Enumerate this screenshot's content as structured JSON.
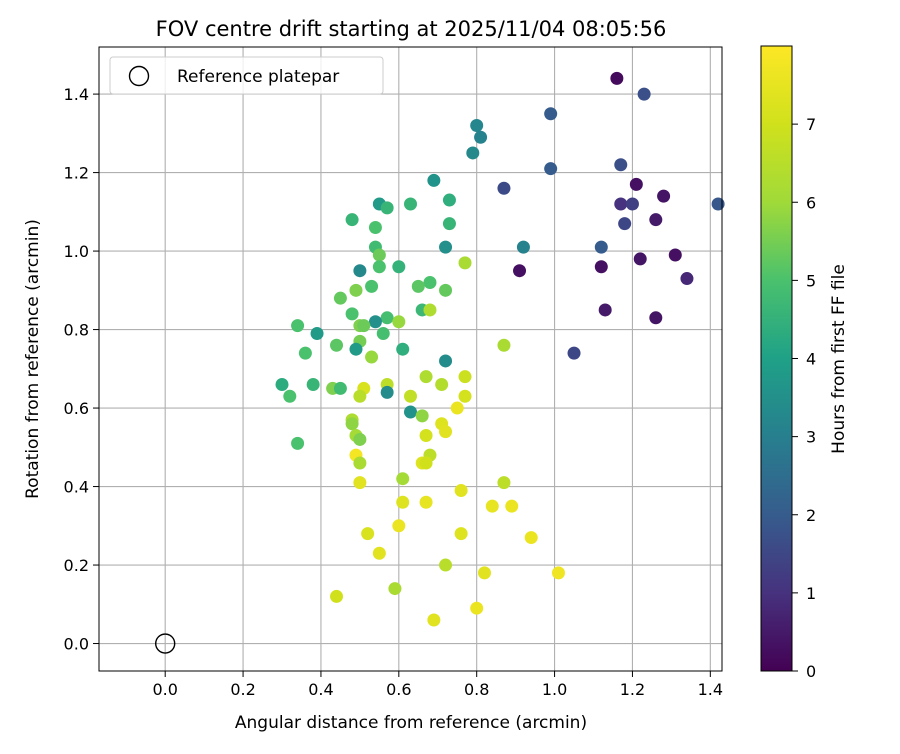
{
  "chart_data": {
    "type": "scatter",
    "title": "FOV centre drift starting at 2025/11/04 08:05:56",
    "xlabel": "Angular distance from reference (arcmin)",
    "ylabel": "Rotation from reference (arcmin)",
    "xlim": [
      -0.17,
      1.43
    ],
    "ylim": [
      -0.07,
      1.52
    ],
    "xticks": [
      0.0,
      0.2,
      0.4,
      0.6,
      0.8,
      1.0,
      1.2,
      1.4
    ],
    "xtick_labels": [
      "0.0",
      "0.2",
      "0.4",
      "0.6",
      "0.8",
      "1.0",
      "1.2",
      "1.4"
    ],
    "yticks": [
      0.0,
      0.2,
      0.4,
      0.6,
      0.8,
      1.0,
      1.2,
      1.4
    ],
    "ytick_labels": [
      "0.0",
      "0.2",
      "0.4",
      "0.6",
      "0.8",
      "1.0",
      "1.2",
      "1.4"
    ],
    "grid": true,
    "colormap": "viridis",
    "colorbar": {
      "label": "Hours from first FF file",
      "range": [
        0,
        8
      ],
      "ticks": [
        0,
        1,
        2,
        3,
        4,
        5,
        6,
        7
      ],
      "tick_labels": [
        "0",
        "1",
        "2",
        "3",
        "4",
        "5",
        "6",
        "7"
      ]
    },
    "legend": {
      "position": "top-left",
      "entries": [
        {
          "label": "Reference platepar",
          "marker": "open-circle"
        }
      ]
    },
    "reference_point": {
      "x": 0.0,
      "y": 0.0
    },
    "points": [
      {
        "x": 1.16,
        "y": 1.44,
        "c": 0.2
      },
      {
        "x": 1.23,
        "y": 1.4,
        "c": 1.7
      },
      {
        "x": 0.99,
        "y": 1.35,
        "c": 2.0
      },
      {
        "x": 0.99,
        "y": 1.21,
        "c": 2.0
      },
      {
        "x": 1.17,
        "y": 1.22,
        "c": 1.7
      },
      {
        "x": 1.21,
        "y": 1.17,
        "c": 0.3
      },
      {
        "x": 1.28,
        "y": 1.14,
        "c": 0.4
      },
      {
        "x": 1.17,
        "y": 1.12,
        "c": 1.0
      },
      {
        "x": 1.2,
        "y": 1.12,
        "c": 1.3
      },
      {
        "x": 1.42,
        "y": 1.12,
        "c": 1.9
      },
      {
        "x": 1.18,
        "y": 1.07,
        "c": 1.5
      },
      {
        "x": 1.26,
        "y": 1.08,
        "c": 0.5
      },
      {
        "x": 1.12,
        "y": 1.01,
        "c": 2.0
      },
      {
        "x": 1.31,
        "y": 0.99,
        "c": 0.3
      },
      {
        "x": 1.22,
        "y": 0.98,
        "c": 0.4
      },
      {
        "x": 1.12,
        "y": 0.96,
        "c": 0.3
      },
      {
        "x": 1.34,
        "y": 0.93,
        "c": 0.8
      },
      {
        "x": 1.13,
        "y": 0.85,
        "c": 0.5
      },
      {
        "x": 1.26,
        "y": 0.83,
        "c": 0.4
      },
      {
        "x": 1.05,
        "y": 0.74,
        "c": 1.5
      },
      {
        "x": 0.91,
        "y": 0.95,
        "c": 0.3
      },
      {
        "x": 0.87,
        "y": 1.16,
        "c": 1.6
      },
      {
        "x": 0.8,
        "y": 1.32,
        "c": 3.2
      },
      {
        "x": 0.81,
        "y": 1.29,
        "c": 3.1
      },
      {
        "x": 0.79,
        "y": 1.25,
        "c": 3.3
      },
      {
        "x": 0.92,
        "y": 1.01,
        "c": 3.1
      },
      {
        "x": 0.69,
        "y": 1.18,
        "c": 3.6
      },
      {
        "x": 0.73,
        "y": 1.13,
        "c": 4.4
      },
      {
        "x": 0.73,
        "y": 1.07,
        "c": 4.6
      },
      {
        "x": 0.72,
        "y": 1.01,
        "c": 3.5
      },
      {
        "x": 0.63,
        "y": 1.12,
        "c": 4.6
      },
      {
        "x": 0.55,
        "y": 1.12,
        "c": 3.8
      },
      {
        "x": 0.57,
        "y": 1.11,
        "c": 4.6
      },
      {
        "x": 0.48,
        "y": 1.08,
        "c": 4.6
      },
      {
        "x": 0.54,
        "y": 1.06,
        "c": 5.0
      },
      {
        "x": 0.54,
        "y": 1.01,
        "c": 4.8
      },
      {
        "x": 0.55,
        "y": 0.99,
        "c": 5.4
      },
      {
        "x": 0.55,
        "y": 0.96,
        "c": 5.0
      },
      {
        "x": 0.6,
        "y": 0.96,
        "c": 4.5
      },
      {
        "x": 0.5,
        "y": 0.95,
        "c": 3.3
      },
      {
        "x": 0.68,
        "y": 0.92,
        "c": 5.0
      },
      {
        "x": 0.65,
        "y": 0.91,
        "c": 5.2
      },
      {
        "x": 0.53,
        "y": 0.91,
        "c": 5.0
      },
      {
        "x": 0.49,
        "y": 0.9,
        "c": 5.6
      },
      {
        "x": 0.72,
        "y": 0.9,
        "c": 5.3
      },
      {
        "x": 0.77,
        "y": 0.97,
        "c": 6.2
      },
      {
        "x": 0.45,
        "y": 0.88,
        "c": 5.3
      },
      {
        "x": 0.48,
        "y": 0.84,
        "c": 5.0
      },
      {
        "x": 0.57,
        "y": 0.83,
        "c": 4.9
      },
      {
        "x": 0.54,
        "y": 0.82,
        "c": 3.5
      },
      {
        "x": 0.6,
        "y": 0.82,
        "c": 5.9
      },
      {
        "x": 0.66,
        "y": 0.85,
        "c": 4.7
      },
      {
        "x": 0.68,
        "y": 0.85,
        "c": 6.3
      },
      {
        "x": 0.5,
        "y": 0.81,
        "c": 5.6
      },
      {
        "x": 0.51,
        "y": 0.81,
        "c": 5.4
      },
      {
        "x": 0.34,
        "y": 0.81,
        "c": 5.0
      },
      {
        "x": 0.39,
        "y": 0.79,
        "c": 3.8
      },
      {
        "x": 0.56,
        "y": 0.79,
        "c": 4.9
      },
      {
        "x": 0.5,
        "y": 0.77,
        "c": 5.5
      },
      {
        "x": 0.44,
        "y": 0.76,
        "c": 5.2
      },
      {
        "x": 0.49,
        "y": 0.75,
        "c": 3.8
      },
      {
        "x": 0.61,
        "y": 0.75,
        "c": 4.4
      },
      {
        "x": 0.36,
        "y": 0.74,
        "c": 5.0
      },
      {
        "x": 0.53,
        "y": 0.73,
        "c": 5.9
      },
      {
        "x": 0.72,
        "y": 0.72,
        "c": 3.4
      },
      {
        "x": 0.87,
        "y": 0.76,
        "c": 6.2
      },
      {
        "x": 0.3,
        "y": 0.66,
        "c": 4.3
      },
      {
        "x": 0.38,
        "y": 0.66,
        "c": 4.6
      },
      {
        "x": 0.32,
        "y": 0.63,
        "c": 5.0
      },
      {
        "x": 0.43,
        "y": 0.65,
        "c": 5.6
      },
      {
        "x": 0.45,
        "y": 0.65,
        "c": 4.8
      },
      {
        "x": 0.51,
        "y": 0.65,
        "c": 7.2
      },
      {
        "x": 0.57,
        "y": 0.66,
        "c": 6.6
      },
      {
        "x": 0.57,
        "y": 0.64,
        "c": 3.4
      },
      {
        "x": 0.5,
        "y": 0.63,
        "c": 6.5
      },
      {
        "x": 0.63,
        "y": 0.63,
        "c": 6.7
      },
      {
        "x": 0.67,
        "y": 0.68,
        "c": 6.3
      },
      {
        "x": 0.71,
        "y": 0.66,
        "c": 6.4
      },
      {
        "x": 0.77,
        "y": 0.68,
        "c": 6.9
      },
      {
        "x": 0.77,
        "y": 0.63,
        "c": 7.1
      },
      {
        "x": 0.75,
        "y": 0.6,
        "c": 7.6
      },
      {
        "x": 0.63,
        "y": 0.59,
        "c": 3.6
      },
      {
        "x": 0.66,
        "y": 0.58,
        "c": 5.8
      },
      {
        "x": 0.71,
        "y": 0.56,
        "c": 7.3
      },
      {
        "x": 0.48,
        "y": 0.57,
        "c": 6.3
      },
      {
        "x": 0.48,
        "y": 0.56,
        "c": 5.8
      },
      {
        "x": 0.49,
        "y": 0.53,
        "c": 6.1
      },
      {
        "x": 0.5,
        "y": 0.52,
        "c": 5.6
      },
      {
        "x": 0.34,
        "y": 0.51,
        "c": 5.0
      },
      {
        "x": 0.72,
        "y": 0.54,
        "c": 7.4
      },
      {
        "x": 0.67,
        "y": 0.53,
        "c": 7.1
      },
      {
        "x": 0.68,
        "y": 0.48,
        "c": 6.6
      },
      {
        "x": 0.49,
        "y": 0.48,
        "c": 7.8
      },
      {
        "x": 0.5,
        "y": 0.46,
        "c": 6.2
      },
      {
        "x": 0.66,
        "y": 0.46,
        "c": 7.3
      },
      {
        "x": 0.67,
        "y": 0.46,
        "c": 7.0
      },
      {
        "x": 0.61,
        "y": 0.42,
        "c": 6.1
      },
      {
        "x": 0.5,
        "y": 0.41,
        "c": 7.4
      },
      {
        "x": 0.76,
        "y": 0.39,
        "c": 7.4
      },
      {
        "x": 0.87,
        "y": 0.41,
        "c": 6.6
      },
      {
        "x": 0.61,
        "y": 0.36,
        "c": 7.3
      },
      {
        "x": 0.67,
        "y": 0.36,
        "c": 7.5
      },
      {
        "x": 0.84,
        "y": 0.35,
        "c": 7.5
      },
      {
        "x": 0.89,
        "y": 0.35,
        "c": 7.6
      },
      {
        "x": 0.52,
        "y": 0.28,
        "c": 7.2
      },
      {
        "x": 0.76,
        "y": 0.28,
        "c": 7.3
      },
      {
        "x": 0.6,
        "y": 0.3,
        "c": 7.6
      },
      {
        "x": 0.94,
        "y": 0.27,
        "c": 7.6
      },
      {
        "x": 0.55,
        "y": 0.23,
        "c": 7.4
      },
      {
        "x": 0.72,
        "y": 0.2,
        "c": 6.5
      },
      {
        "x": 0.82,
        "y": 0.18,
        "c": 7.4
      },
      {
        "x": 1.01,
        "y": 0.18,
        "c": 7.7
      },
      {
        "x": 0.59,
        "y": 0.14,
        "c": 6.2
      },
      {
        "x": 0.44,
        "y": 0.12,
        "c": 7.0
      },
      {
        "x": 0.8,
        "y": 0.09,
        "c": 7.6
      },
      {
        "x": 0.69,
        "y": 0.06,
        "c": 7.4
      }
    ]
  }
}
